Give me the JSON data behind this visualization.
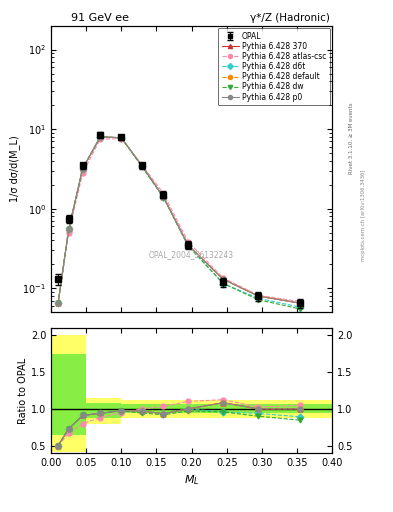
{
  "title_left": "91 GeV ee",
  "title_right": "γ*/Z (Hadronic)",
  "ylabel_main": "1/σ dσ/d(M_L)",
  "ylabel_ratio": "Ratio to OPAL",
  "xlabel": "M_L",
  "watermark": "OPAL_2004_S6132243",
  "rivet_label": "Rivet 3.1.10, ≥ 3M events",
  "mcplots_label": "mcplots.cern.ch [arXiv:1306.3436]",
  "x_data": [
    0.01,
    0.025,
    0.045,
    0.07,
    0.1,
    0.13,
    0.16,
    0.195,
    0.245,
    0.295,
    0.355
  ],
  "opal_y": [
    0.13,
    0.75,
    3.5,
    8.5,
    8.0,
    3.5,
    1.5,
    0.35,
    0.12,
    0.08,
    0.065
  ],
  "opal_yerr": [
    0.02,
    0.08,
    0.3,
    0.6,
    0.5,
    0.3,
    0.15,
    0.04,
    0.015,
    0.01,
    0.008
  ],
  "py370_y": [
    0.065,
    0.55,
    3.2,
    8.0,
    7.8,
    3.4,
    1.4,
    0.35,
    0.13,
    0.08,
    0.065
  ],
  "py_atlas_y": [
    0.065,
    0.5,
    2.8,
    7.5,
    7.6,
    3.5,
    1.55,
    0.385,
    0.135,
    0.082,
    0.068
  ],
  "py_d6t_y": [
    0.065,
    0.55,
    3.2,
    8.0,
    7.8,
    3.4,
    1.4,
    0.35,
    0.115,
    0.075,
    0.058
  ],
  "py_default_y": [
    0.065,
    0.55,
    3.2,
    8.0,
    7.8,
    3.4,
    1.4,
    0.35,
    0.13,
    0.08,
    0.065
  ],
  "py_dw_y": [
    0.065,
    0.55,
    3.2,
    8.0,
    7.8,
    3.3,
    1.38,
    0.34,
    0.115,
    0.072,
    0.055
  ],
  "py_p0_y": [
    0.065,
    0.55,
    3.2,
    8.0,
    7.8,
    3.4,
    1.4,
    0.35,
    0.13,
    0.08,
    0.065
  ],
  "colors": {
    "opal": "#000000",
    "py370": "#cc3333",
    "py_atlas": "#ff88aa",
    "py_d6t": "#33cccc",
    "py_default": "#ff8800",
    "py_dw": "#33aa33",
    "py_p0": "#888888"
  },
  "ratio_py370": [
    0.5,
    0.73,
    0.91,
    0.94,
    0.975,
    0.97,
    0.933,
    1.0,
    1.083,
    1.0,
    1.0
  ],
  "ratio_py_atlas": [
    0.5,
    0.67,
    0.8,
    0.882,
    0.95,
    1.0,
    1.033,
    1.1,
    1.125,
    1.025,
    1.046
  ],
  "ratio_py_d6t": [
    0.5,
    0.73,
    0.91,
    0.94,
    0.975,
    0.97,
    0.933,
    1.0,
    0.958,
    0.938,
    0.892
  ],
  "ratio_py_default": [
    0.5,
    0.73,
    0.91,
    0.94,
    0.975,
    0.97,
    0.933,
    1.0,
    1.083,
    1.0,
    1.0
  ],
  "ratio_py_dw": [
    0.5,
    0.73,
    0.91,
    0.94,
    0.975,
    0.943,
    0.92,
    0.971,
    0.958,
    0.9,
    0.846
  ],
  "ratio_py_p0": [
    0.5,
    0.73,
    0.91,
    0.94,
    0.975,
    0.97,
    0.933,
    1.0,
    1.083,
    1.0,
    1.0
  ],
  "xlim": [
    0.0,
    0.4
  ],
  "ylim_main_log": [
    0.05,
    200
  ],
  "ylim_ratio": [
    0.4,
    2.1
  ],
  "ratio_yticks": [
    0.5,
    1.0,
    1.5,
    2.0
  ]
}
